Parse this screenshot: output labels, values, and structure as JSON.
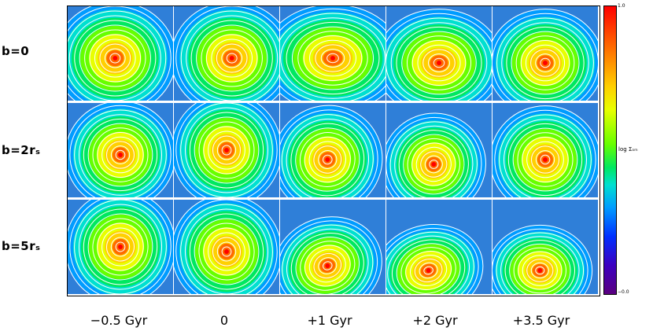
{
  "rows": [
    {
      "label": "b=0"
    },
    {
      "label": "b=2rₛ"
    },
    {
      "label": "b=5rₛ"
    }
  ],
  "columns": [
    {
      "label": "−0.5 Gyr"
    },
    {
      "label": "0"
    },
    {
      "label": "+1 Gyr"
    },
    {
      "label": "+2 Gyr"
    },
    {
      "label": "+3.5 Gyr"
    }
  ],
  "colorbar": {
    "label": "log Σₒₘ",
    "max_label": "1.0",
    "min_label": "−0.0",
    "colors": [
      "#ff0000",
      "#ff6a00",
      "#ffd000",
      "#e8ff00",
      "#66ff00",
      "#00e860",
      "#00e0d0",
      "#009cff",
      "#0030ff",
      "#3c00c0",
      "#5a0080"
    ]
  },
  "panel_background": "#2f7fd8",
  "contour_color": "#ffffff"
}
